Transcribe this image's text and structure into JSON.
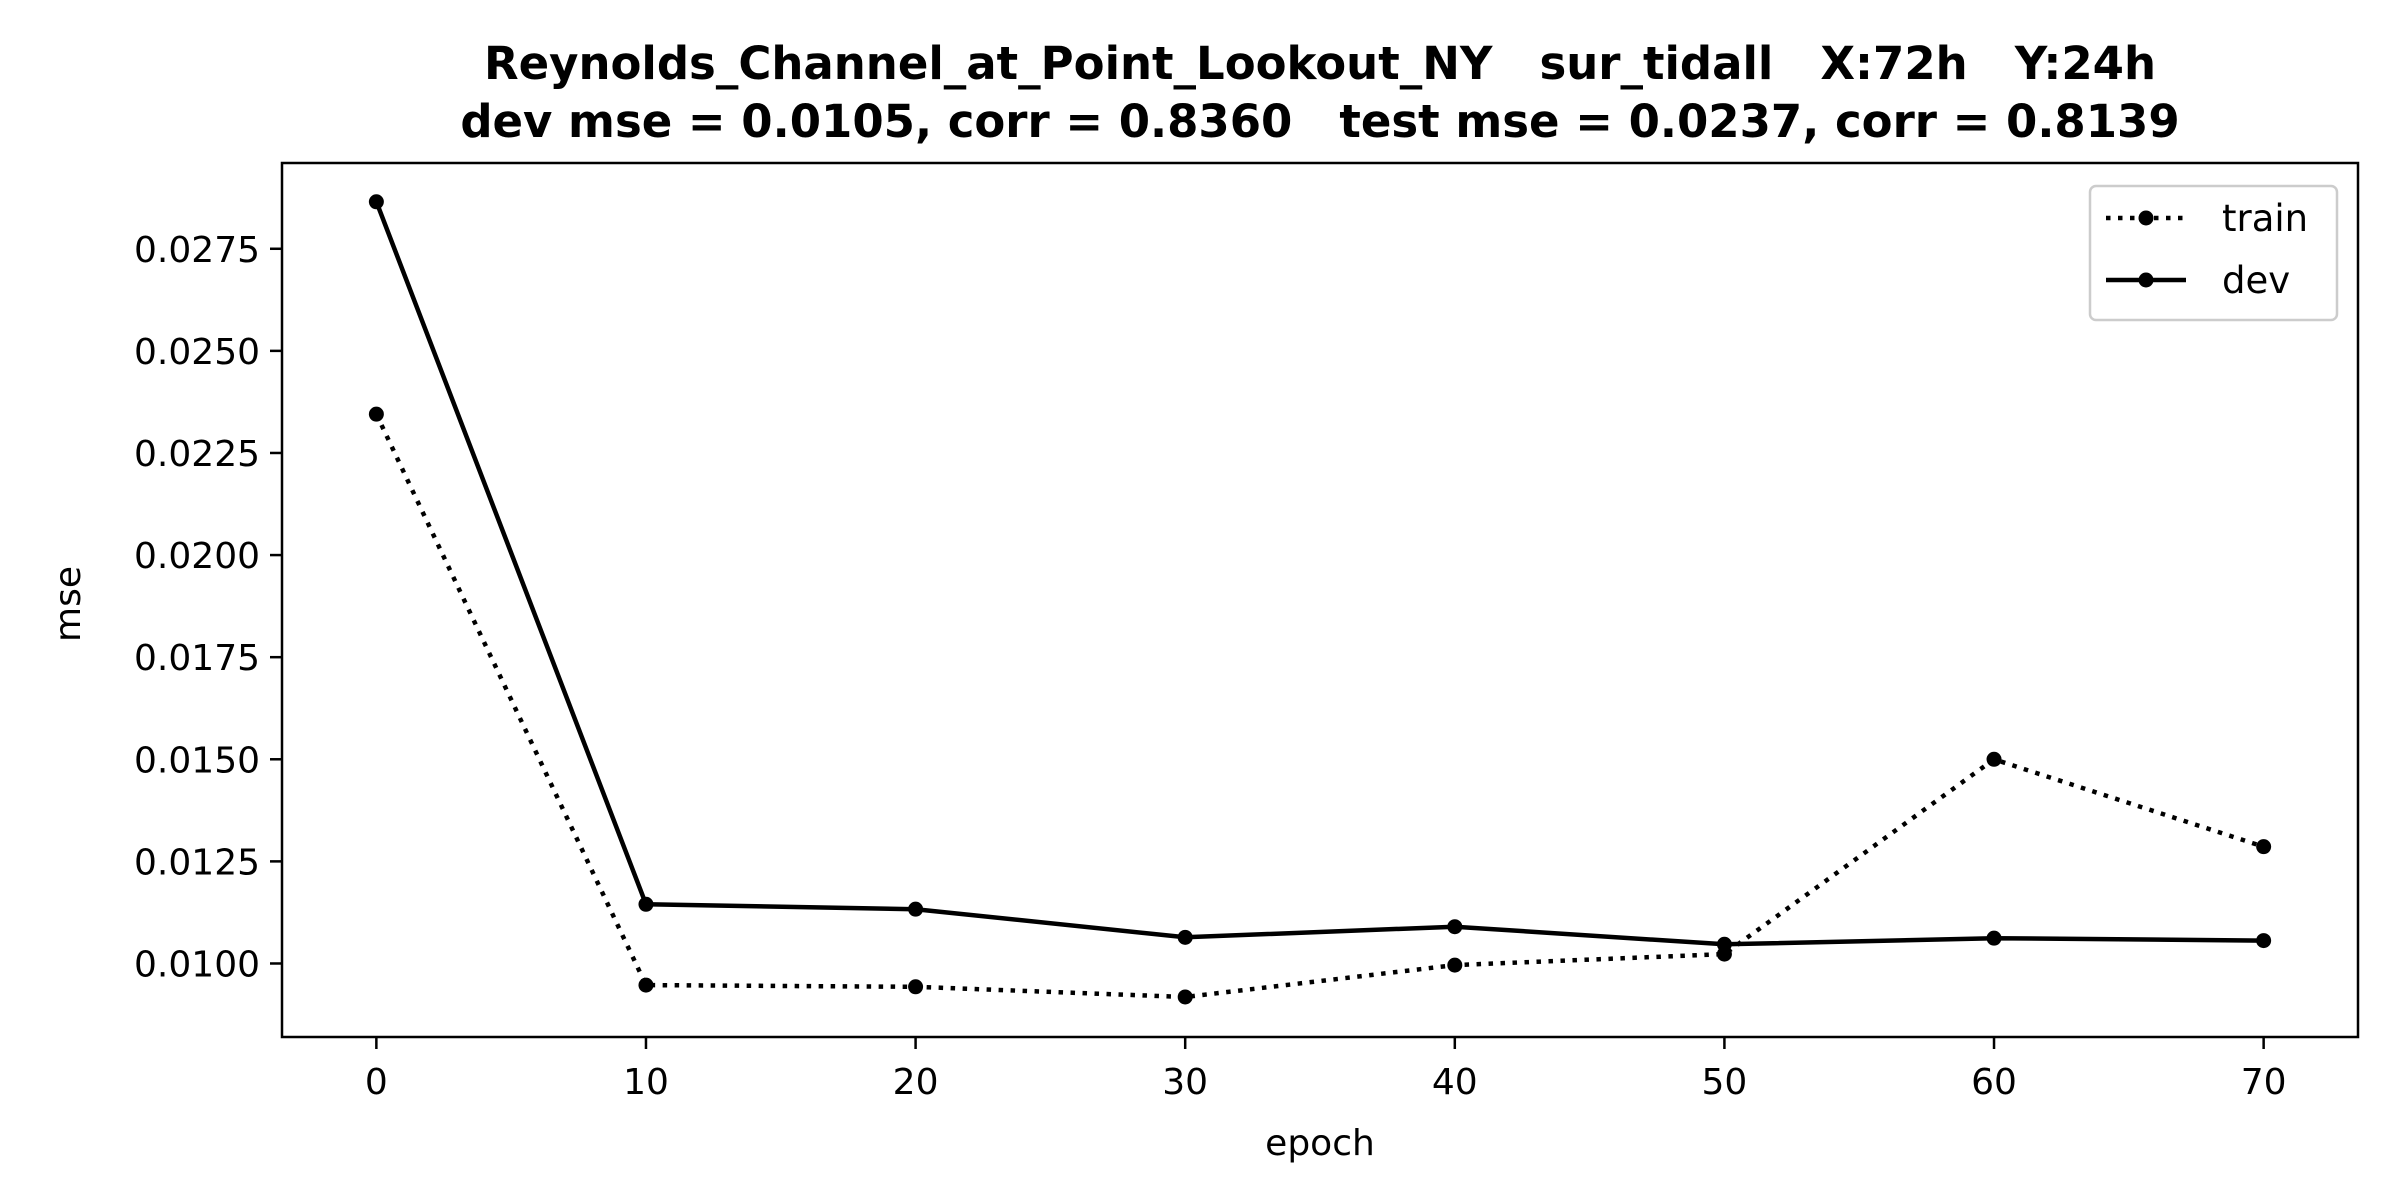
{
  "chart_data": {
    "type": "line",
    "title": "Reynolds_Channel_at_Point_Lookout_NY   sur_tidall   X:72h   Y:24h",
    "subtitle": "dev mse = 0.0105, corr = 0.8360   test mse = 0.0237, corr = 0.8139",
    "xlabel": "epoch",
    "ylabel": "mse",
    "x": [
      0,
      10,
      20,
      30,
      40,
      50,
      60,
      70
    ],
    "xlim": [
      -3.5,
      73.5
    ],
    "ylim": [
      0.0082,
      0.0296
    ],
    "xticks": [
      0,
      10,
      20,
      30,
      40,
      50,
      60,
      70
    ],
    "yticks": [
      0.01,
      0.0125,
      0.015,
      0.0175,
      0.02,
      0.0225,
      0.025,
      0.0275
    ],
    "xtick_labels": [
      "0",
      "10",
      "20",
      "30",
      "40",
      "50",
      "60",
      "70"
    ],
    "ytick_labels": [
      "0.0100",
      "0.0125",
      "0.0150",
      "0.0175",
      "0.0200",
      "0.0225",
      "0.0250",
      "0.0275"
    ],
    "grid": false,
    "legend_position": "top-right",
    "series": [
      {
        "name": "train",
        "style": "dotted",
        "color": "#000000",
        "values": [
          0.02345,
          0.00947,
          0.00943,
          0.00918,
          0.00996,
          0.01023,
          0.015,
          0.01286
        ]
      },
      {
        "name": "dev",
        "style": "solid",
        "color": "#000000",
        "values": [
          0.02865,
          0.01145,
          0.01133,
          0.01064,
          0.0109,
          0.01047,
          0.01062,
          0.01056
        ]
      }
    ]
  }
}
